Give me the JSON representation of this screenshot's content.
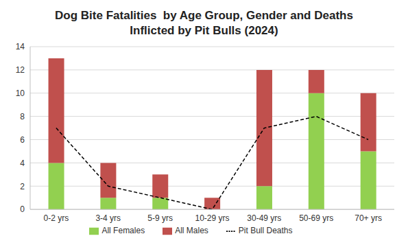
{
  "chart_data": {
    "type": "bar",
    "title": "Dog Bite Fatalities  by Age Group, Gender and Deaths Inflicted by Pit Bulls (2024)",
    "categories": [
      "0-2 yrs",
      "3-4 yrs",
      "5-9 yrs",
      "10-29 yrs",
      "30-49 yrs",
      "50-69 yrs",
      "70+ yrs"
    ],
    "series": [
      {
        "name": "All Females",
        "type": "bar",
        "color": "#92d050",
        "values": [
          4,
          1,
          1,
          0,
          2,
          10,
          5
        ]
      },
      {
        "name": "All Males",
        "type": "bar",
        "color": "#c0504d",
        "values": [
          9,
          3,
          2,
          1,
          10,
          2,
          5
        ]
      },
      {
        "name": "Pit Bull Deaths",
        "type": "line",
        "color": "#000000",
        "line_style": "dashed",
        "values": [
          7,
          2,
          1,
          0,
          7,
          8,
          6
        ]
      }
    ],
    "stacked": true,
    "ylim": [
      0,
      14
    ],
    "yticks": [
      0,
      2,
      4,
      6,
      8,
      10,
      12,
      14
    ],
    "grid": true,
    "legend": "bottom"
  }
}
